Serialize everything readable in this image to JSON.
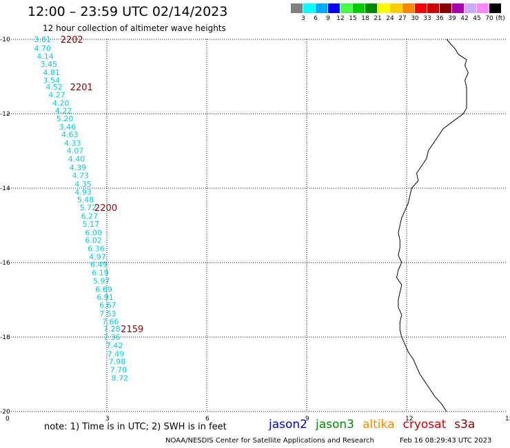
{
  "header": {
    "title": "12:00 – 23:59 UTC 02/14/2023",
    "subtitle": "12 hour collection of altimeter wave heights"
  },
  "legend": {
    "unit": "(ft)",
    "colors": [
      "#808080",
      "#00ffff",
      "#00aaff",
      "#0000ff",
      "#44ff44",
      "#00cc00",
      "#008800",
      "#ffff00",
      "#ffcc00",
      "#ff8800",
      "#ff0000",
      "#cc0000",
      "#880000",
      "#aa00aa",
      "#ccaaff",
      "#ff88ff",
      "#000000"
    ],
    "labels": [
      "3",
      "6",
      "9",
      "12",
      "15",
      "18",
      "21",
      "24",
      "27",
      "30",
      "33",
      "36",
      "39",
      "42",
      "45",
      "70"
    ]
  },
  "map": {
    "lon_ticks": [
      "0",
      "3",
      "6",
      "9",
      "12",
      "15"
    ],
    "lat_ticks": [
      "-10",
      "-12",
      "-14",
      "-16",
      "-18",
      "-20"
    ],
    "lat_range": [
      -10,
      -20
    ],
    "lon_range": [
      0,
      15
    ],
    "grid": true,
    "track_color": "#00ccdd",
    "time_color": "#8b0000",
    "coast_lat": [
      -10,
      -10.1,
      -10.25,
      -10.4,
      -10.55,
      -10.7,
      -10.9,
      -11.1,
      -11.3,
      -11.5,
      -11.7,
      -11.85,
      -12.0,
      -12.2,
      -12.4,
      -12.6,
      -12.8,
      -13.0,
      -13.2,
      -13.4,
      -13.6,
      -13.8,
      -14.0,
      -14.2,
      -14.4,
      -14.6,
      -14.8,
      -15.0,
      -15.2,
      -15.4,
      -15.6,
      -15.8,
      -16.0,
      -16.2,
      -16.4,
      -16.6,
      -16.8,
      -17.0,
      -17.2,
      -17.4,
      -17.6,
      -17.8,
      -18.0,
      -18.2,
      -18.4,
      -18.6,
      -18.8,
      -19.0,
      -19.2,
      -19.4,
      -19.6,
      -19.8,
      -20.0
    ],
    "coast_lon": [
      13.2,
      13.3,
      13.45,
      13.55,
      13.8,
      13.75,
      13.85,
      13.75,
      13.8,
      13.8,
      13.8,
      13.8,
      13.7,
      13.4,
      13.1,
      12.95,
      12.8,
      12.65,
      12.6,
      12.45,
      12.3,
      12.35,
      12.15,
      12.1,
      12.05,
      11.95,
      11.85,
      11.8,
      11.75,
      11.8,
      11.8,
      11.75,
      11.85,
      11.75,
      11.7,
      11.85,
      11.8,
      11.75,
      11.75,
      11.85,
      11.8,
      11.8,
      11.85,
      11.95,
      12.05,
      12.2,
      12.3,
      12.4,
      12.55,
      12.7,
      12.85,
      13.05,
      13.2
    ]
  },
  "track": [
    {
      "lat": -10.0,
      "lon": 1.07,
      "value": "3.81"
    },
    {
      "lat": -10.24,
      "lon": 1.07,
      "value": "4.70"
    },
    {
      "lat": -10.45,
      "lon": 1.15,
      "value": "4.14"
    },
    {
      "lat": -10.67,
      "lon": 1.26,
      "value": "3.45"
    },
    {
      "lat": -10.89,
      "lon": 1.34,
      "value": "4.81"
    },
    {
      "lat": -11.1,
      "lon": 1.34,
      "value": "3.54"
    },
    {
      "lat": -11.28,
      "lon": 1.42,
      "value": "4.52"
    },
    {
      "lat": -11.49,
      "lon": 1.5,
      "value": "4.27"
    },
    {
      "lat": -11.71,
      "lon": 1.62,
      "value": "4.20"
    },
    {
      "lat": -11.92,
      "lon": 1.7,
      "value": "4.22"
    },
    {
      "lat": -12.13,
      "lon": 1.74,
      "value": "5.20"
    },
    {
      "lat": -12.35,
      "lon": 1.82,
      "value": "3.46"
    },
    {
      "lat": -12.56,
      "lon": 1.89,
      "value": "4.63"
    },
    {
      "lat": -12.79,
      "lon": 1.97,
      "value": "4.33"
    },
    {
      "lat": -12.99,
      "lon": 2.05,
      "value": "4.07"
    },
    {
      "lat": -13.21,
      "lon": 2.09,
      "value": "4.40"
    },
    {
      "lat": -13.44,
      "lon": 2.13,
      "value": "4.39"
    },
    {
      "lat": -13.66,
      "lon": 2.21,
      "value": "4.73"
    },
    {
      "lat": -13.89,
      "lon": 2.29,
      "value": "4.35"
    },
    {
      "lat": -14.1,
      "lon": 2.29,
      "value": "4.93"
    },
    {
      "lat": -14.31,
      "lon": 2.36,
      "value": "5.48"
    },
    {
      "lat": -14.52,
      "lon": 2.44,
      "value": "5.72"
    },
    {
      "lat": -14.75,
      "lon": 2.48,
      "value": "6.27"
    },
    {
      "lat": -14.96,
      "lon": 2.52,
      "value": "5.17"
    },
    {
      "lat": -15.19,
      "lon": 2.6,
      "value": "6.00"
    },
    {
      "lat": -15.4,
      "lon": 2.6,
      "value": "6.02"
    },
    {
      "lat": -15.62,
      "lon": 2.68,
      "value": "6.36"
    },
    {
      "lat": -15.84,
      "lon": 2.72,
      "value": "4.97"
    },
    {
      "lat": -16.05,
      "lon": 2.76,
      "value": "6.49"
    },
    {
      "lat": -16.27,
      "lon": 2.8,
      "value": "6.19"
    },
    {
      "lat": -16.49,
      "lon": 2.84,
      "value": "5.97"
    },
    {
      "lat": -16.71,
      "lon": 2.91,
      "value": "6.69"
    },
    {
      "lat": -16.93,
      "lon": 2.95,
      "value": "6.91"
    },
    {
      "lat": -17.14,
      "lon": 3.03,
      "value": "6.67"
    },
    {
      "lat": -17.37,
      "lon": 3.03,
      "value": "7.53"
    },
    {
      "lat": -17.58,
      "lon": 3.11,
      "value": "7.66"
    },
    {
      "lat": -17.78,
      "lon": 3.15,
      "value": "7.28"
    },
    {
      "lat": -18.0,
      "lon": 3.15,
      "value": "7.36"
    },
    {
      "lat": -18.22,
      "lon": 3.23,
      "value": "7.42"
    },
    {
      "lat": -18.45,
      "lon": 3.27,
      "value": "7.49"
    },
    {
      "lat": -18.66,
      "lon": 3.31,
      "value": "7.98"
    },
    {
      "lat": -18.88,
      "lon": 3.35,
      "value": "7.70"
    },
    {
      "lat": -19.1,
      "lon": 3.39,
      "value": "8.72"
    }
  ],
  "times": [
    {
      "label": "2202",
      "lat": -10.0,
      "lon": 1.95
    },
    {
      "label": "2201",
      "lat": -11.28,
      "lon": 2.24
    },
    {
      "label": "2200",
      "lat": -14.52,
      "lon": 2.97
    },
    {
      "label": "2159",
      "lat": -17.78,
      "lon": 3.76
    }
  ],
  "footer": {
    "note": "note:  1) Time is in UTC;  2) SWH is in feet",
    "satellites": [
      {
        "name": "jason2",
        "color": "#0000cc"
      },
      {
        "name": "jason3",
        "color": "#008800"
      },
      {
        "name": "altika",
        "color": "#ff8800"
      },
      {
        "name": "cryosat",
        "color": "#cc0000"
      },
      {
        "name": "s3a",
        "color": "#880000"
      }
    ],
    "credit": "NOAA/NESDIS Center for Satellite Applications and Research",
    "timestamp": "Feb 16 08:29:43 UTC 2023"
  }
}
